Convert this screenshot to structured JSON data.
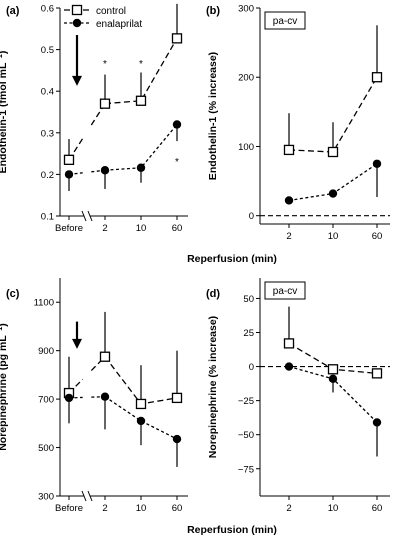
{
  "chart_data": [
    {
      "panel_label": "(a)",
      "type": "line",
      "categories": [
        "Before",
        "2",
        "10",
        "60"
      ],
      "ylabel": "Endothelin-1 (fmol mL",
      "ylabel_sup": "−1",
      "ylabel_close": ")",
      "ylim": [
        0.1,
        0.6
      ],
      "yticks": [
        "0.1",
        "0.2",
        "0.3",
        "0.4",
        "0.5",
        "0.6"
      ],
      "legend": [
        "control",
        "enalaprilat"
      ],
      "series": [
        {
          "name": "control",
          "marker": "square",
          "values": [
            0.235,
            0.37,
            0.377,
            0.527
          ],
          "upper": [
            0.285,
            0.44,
            0.445,
            0.61
          ],
          "lower": [
            null,
            null,
            null,
            null
          ]
        },
        {
          "name": "enalaprilat",
          "marker": "circle",
          "values": [
            0.2,
            0.21,
            0.216,
            0.32
          ],
          "upper": [
            null,
            null,
            null,
            null
          ],
          "lower": [
            0.16,
            0.165,
            0.18,
            0.28
          ]
        }
      ],
      "significance": [
        {
          "category": "2",
          "label": "*",
          "y": 0.465
        },
        {
          "category": "10",
          "label": "*",
          "y": 0.465
        },
        {
          "category": "60",
          "label": "***",
          "y": 0.63
        },
        {
          "category": "60",
          "label": "*",
          "y": 0.23
        }
      ],
      "arrow": true
    },
    {
      "panel_label": "(b)",
      "type": "line",
      "box_label": "pa-cv",
      "categories": [
        "2",
        "10",
        "60"
      ],
      "ylabel": "Endothelin-1 (% increase)",
      "ylim": [
        -12,
        300
      ],
      "yticks": [
        "0",
        "100",
        "200",
        "300"
      ],
      "zero_line": true,
      "series": [
        {
          "name": "control",
          "marker": "square",
          "values": [
            95,
            92,
            200
          ],
          "upper": [
            148,
            135,
            275
          ],
          "lower": [
            null,
            null,
            null
          ]
        },
        {
          "name": "enalaprilat",
          "marker": "circle",
          "values": [
            22,
            32,
            75
          ],
          "upper": [
            null,
            null,
            null
          ],
          "lower": [
            null,
            null,
            27
          ]
        }
      ]
    },
    {
      "panel_label": "(c)",
      "type": "line",
      "categories": [
        "Before",
        "2",
        "10",
        "60"
      ],
      "ylabel": "Norepinephrine (pg mL",
      "ylabel_sup": "−1",
      "ylabel_close": ")",
      "ylim": [
        300,
        1200
      ],
      "yticks": [
        "300",
        "500",
        "700",
        "900",
        "1100"
      ],
      "series": [
        {
          "name": "control",
          "marker": "square",
          "values": [
            725,
            875,
            680,
            705
          ],
          "upper": [
            875,
            1060,
            840,
            900
          ],
          "lower": [
            null,
            null,
            null,
            null
          ]
        },
        {
          "name": "enalaprilat",
          "marker": "circle",
          "values": [
            705,
            710,
            610,
            535
          ],
          "upper": [
            null,
            null,
            null,
            null
          ],
          "lower": [
            600,
            575,
            510,
            420
          ]
        }
      ],
      "arrow": true
    },
    {
      "panel_label": "(d)",
      "type": "line",
      "box_label": "pa-cv",
      "categories": [
        "2",
        "10",
        "60"
      ],
      "ylabel": "Norepinephrine (% increase)",
      "ylim": [
        -95,
        65
      ],
      "yticks": [
        "−75",
        "−50",
        "−25",
        "0",
        "25",
        "50"
      ],
      "zero_line": true,
      "series": [
        {
          "name": "control",
          "marker": "square",
          "values": [
            17,
            -2,
            -5
          ],
          "upper": [
            44,
            null,
            null
          ],
          "lower": [
            null,
            null,
            null
          ]
        },
        {
          "name": "enalaprilat",
          "marker": "circle",
          "values": [
            0,
            -9,
            -41
          ],
          "upper": [
            null,
            null,
            null
          ],
          "lower": [
            null,
            -19,
            -66
          ]
        }
      ]
    }
  ],
  "xlabel": "Reperfusion (min)"
}
